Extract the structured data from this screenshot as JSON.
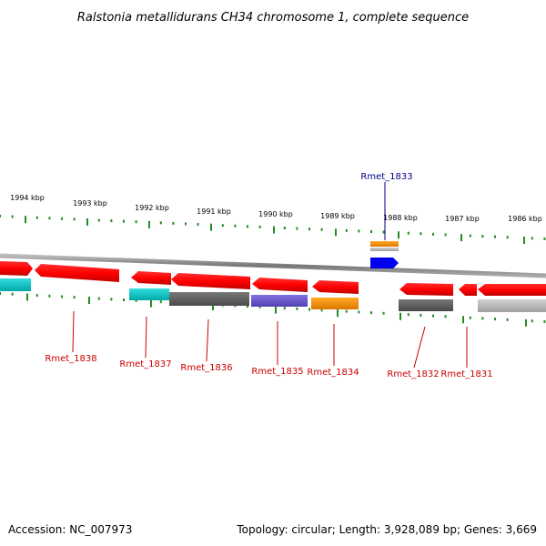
{
  "title": "Ralstonia metallidurans CH34 chromosome 1, complete sequence",
  "accession": "Accession: NC_007973",
  "summary": "Topology: circular; Length: 3,928,089 bp; Genes: 3,669",
  "kbp_labels": [
    "1994 kbp",
    "1993 kbp",
    "1992 kbp",
    "1991 kbp",
    "1990 kbp",
    "1989 kbp",
    "1988 kbp",
    "1987 kbp",
    "1986 kbp"
  ],
  "gene_labels": [
    {
      "name": "Rmet_1833",
      "color": "#000080"
    },
    {
      "name": "Rmet_1838",
      "color": "#cc0000"
    },
    {
      "name": "Rmet_1837",
      "color": "#cc0000"
    },
    {
      "name": "Rmet_1836",
      "color": "#cc0000"
    },
    {
      "name": "Rmet_1835",
      "color": "#cc0000"
    },
    {
      "name": "Rmet_1834",
      "color": "#cc0000"
    },
    {
      "name": "Rmet_1832",
      "color": "#cc0000"
    },
    {
      "name": "Rmet_1831",
      "color": "#cc0000"
    }
  ],
  "colors": {
    "backbone": "#888888",
    "tick": "#228b22",
    "gene_red": "#ff0000",
    "cyan": "#00cccc",
    "gray_dark": "#666666",
    "gray_light": "#bbbbbb",
    "purple": "#6a5acd",
    "orange": "#ff9900",
    "blue": "#0000ee"
  }
}
